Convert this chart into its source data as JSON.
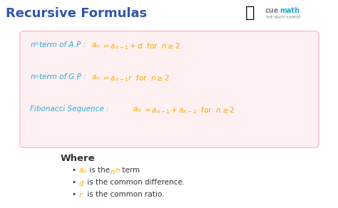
{
  "title": "Recursive Formulas",
  "title_color": "#3355AA",
  "title_fontsize": 13,
  "bg_color": "#ffffff",
  "box_bg_color": "#FFF0F2",
  "box_edge_color": "#FFBBCC",
  "formula_color_blue": "#29AADD",
  "formula_color_orange": "#FFA500",
  "where_color": "#333333",
  "bullet_color": "#333333",
  "cuemath_blue": "#29AADD",
  "cuemath_gray": "#888888",
  "where_text": "Where",
  "note1_plain1": " is the ",
  "note1_plain2": " term",
  "note2": "is the common difference.",
  "note3": "is the common ratio."
}
